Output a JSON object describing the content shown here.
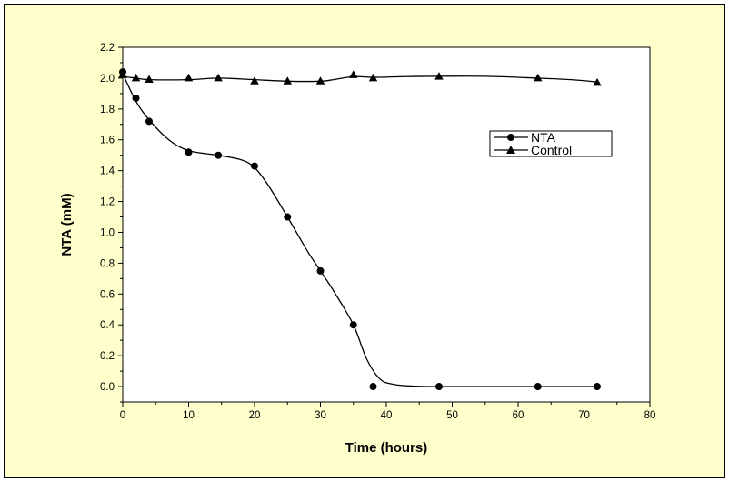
{
  "chart_data": {
    "type": "line",
    "title": "",
    "xlabel": "Time (hours)",
    "ylabel": "NTA (mM)",
    "xlim": [
      0,
      80
    ],
    "ylim": [
      -0.1,
      2.2
    ],
    "x_ticks": [
      0,
      10,
      20,
      30,
      40,
      50,
      60,
      70,
      80
    ],
    "y_ticks": [
      "0.0",
      "0.2",
      "0.4",
      "0.6",
      "0.8",
      "1.0",
      "1.2",
      "1.4",
      "1.6",
      "1.8",
      "2.0",
      "2.2"
    ],
    "grid": false,
    "legend_position": "upper-right",
    "series": [
      {
        "name": "NTA",
        "marker": "circle",
        "color": "#000000",
        "x": [
          0,
          2,
          4,
          10,
          14.5,
          20,
          25,
          30,
          35,
          38,
          48,
          63,
          72
        ],
        "y": [
          2.04,
          1.87,
          1.72,
          1.52,
          1.5,
          1.43,
          1.1,
          0.75,
          0.4,
          0.0,
          0.0,
          0.0,
          0.0
        ],
        "curve_x": [
          0,
          2,
          4,
          7,
          10,
          14.5,
          18,
          20,
          22,
          25,
          28,
          30,
          32,
          35,
          37,
          39,
          41,
          44,
          48,
          55,
          63,
          72
        ],
        "curve_y": [
          2.03,
          1.85,
          1.73,
          1.6,
          1.53,
          1.5,
          1.47,
          1.42,
          1.31,
          1.1,
          0.88,
          0.75,
          0.62,
          0.4,
          0.18,
          0.05,
          0.015,
          0.003,
          0.0,
          0.0,
          0.0,
          0.0
        ]
      },
      {
        "name": "Control",
        "marker": "triangle",
        "color": "#000000",
        "x": [
          0,
          2,
          4,
          10,
          14.5,
          20,
          25,
          30,
          35,
          38,
          48,
          63,
          72
        ],
        "y": [
          2.02,
          2.0,
          1.99,
          2.0,
          2.0,
          1.98,
          1.98,
          1.98,
          2.02,
          2.0,
          2.01,
          2.0,
          1.97
        ],
        "curve_x": [
          0,
          2,
          4,
          10,
          14.5,
          20,
          25,
          30,
          32,
          35,
          38,
          43,
          48,
          55,
          63,
          68,
          72
        ],
        "curve_y": [
          2.01,
          2.0,
          1.99,
          1.99,
          2.0,
          1.99,
          1.98,
          1.98,
          1.99,
          2.01,
          2.005,
          2.01,
          2.012,
          2.012,
          2.0,
          1.99,
          1.975
        ]
      }
    ]
  }
}
